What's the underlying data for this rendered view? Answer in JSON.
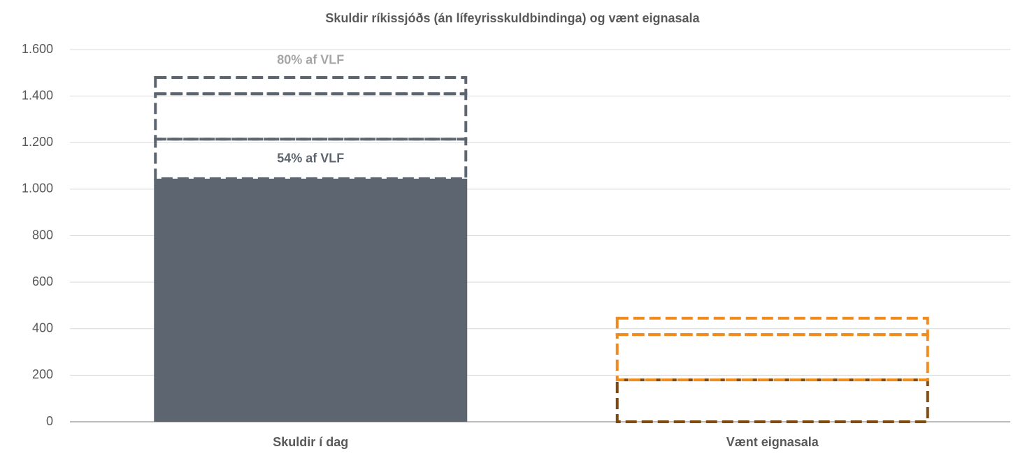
{
  "chart_data": {
    "type": "bar",
    "stacked": true,
    "title": "Skuldir ríkissjóðs (án lífeyrisskuldbindinga) og vænt eignasala",
    "categories": [
      "Skuldir í dag",
      "Vænt eignasala"
    ],
    "series": [
      {
        "values": [
          1045,
          null
        ],
        "colors": [
          "#5d6670",
          "#5d6670"
        ],
        "style": "solid"
      },
      {
        "values": [
          170,
          180
        ],
        "colors": [
          "#5d6670",
          "#7f4a10"
        ],
        "style": "dashed"
      },
      {
        "values": [
          195,
          195
        ],
        "colors": [
          "#5d6670",
          "#f08c1e"
        ],
        "style": "dashed"
      },
      {
        "values": [
          70,
          70
        ],
        "colors": [
          "#5d6670",
          "#f08c1e"
        ],
        "style": "dashed"
      }
    ],
    "annotations": [
      {
        "text": "54% af VLF",
        "series": 1,
        "category": 0,
        "position": "inside",
        "color": "#5d6670"
      },
      {
        "text": "80% af VLF",
        "series": 3,
        "category": 0,
        "position": "above",
        "color": "#a6a6a6"
      }
    ],
    "ylim": [
      0,
      1600
    ],
    "yticks": [
      0,
      200,
      400,
      600,
      800,
      1000,
      1200,
      1400,
      1600
    ],
    "yticks_labels": [
      "0",
      "200",
      "400",
      "600",
      "800",
      "1.000",
      "1.200",
      "1.400",
      "1.600"
    ],
    "grid": true
  }
}
